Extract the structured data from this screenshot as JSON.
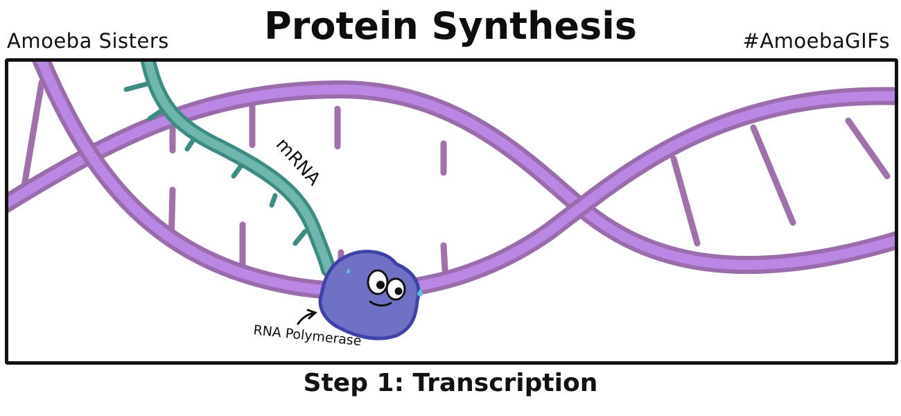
{
  "header": {
    "title": "Protein Synthesis",
    "brand_left": "Amoeba Sisters",
    "brand_right": "#AmoebaGIFs"
  },
  "diagram": {
    "labels": {
      "mrna": "mRNA",
      "polymerase": "RNA Polymerase"
    },
    "colors": {
      "dna_backbone": "#b987e4",
      "dna_edge": "#9a6cab",
      "dna_rungs": "#a070ab",
      "mrna_fill": "#6fb7ad",
      "mrna_edge": "#3d8c83",
      "polymerase_fill": "#6f72c4",
      "polymerase_edge": "#3f42a8",
      "panel_border": "#111111"
    }
  },
  "footer": {
    "caption": "Step 1: Transcription"
  }
}
